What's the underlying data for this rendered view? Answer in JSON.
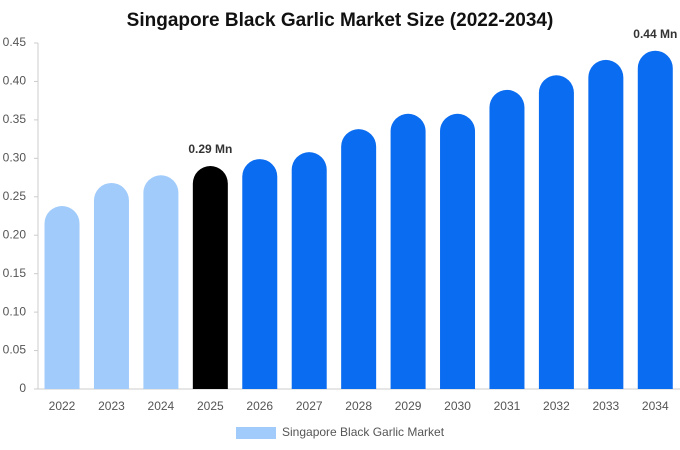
{
  "chart_data": {
    "type": "bar",
    "title": "Singapore Black Garlic Market Size (2022-2034)",
    "categories": [
      "2022",
      "2023",
      "2024",
      "2025",
      "2026",
      "2027",
      "2028",
      "2029",
      "2030",
      "2031",
      "2032",
      "2033",
      "2034"
    ],
    "series": [
      {
        "name": "Singapore Black Garlic Market",
        "color": "#a0cbfb",
        "values": [
          0.238,
          0.268,
          0.278,
          0.29,
          0.299,
          0.308,
          0.338,
          0.358,
          0.358,
          0.389,
          0.408,
          0.428,
          0.44
        ],
        "colors": [
          "#a0cbfb",
          "#a0cbfb",
          "#a0cbfb",
          "#000000",
          "#0a6cf0",
          "#0a6cf0",
          "#0a6cf0",
          "#0a6cf0",
          "#0a6cf0",
          "#0a6cf0",
          "#0a6cf0",
          "#0a6cf0",
          "#0a6cf0"
        ],
        "value_labels": [
          null,
          null,
          null,
          "0.29 Mn",
          null,
          null,
          null,
          null,
          null,
          null,
          null,
          null,
          "0.44 Mn"
        ]
      }
    ],
    "ylim": [
      0,
      0.45
    ],
    "yticks": [
      0,
      0.05,
      {
        "value": 0.1,
        "label": "0.10"
      },
      0.15,
      {
        "value": 0.2,
        "label": "0.20"
      },
      0.25,
      {
        "value": 0.3,
        "label": "0.30"
      },
      0.35,
      {
        "value": 0.4,
        "label": "0.40"
      },
      0.45
    ],
    "grid": false
  }
}
